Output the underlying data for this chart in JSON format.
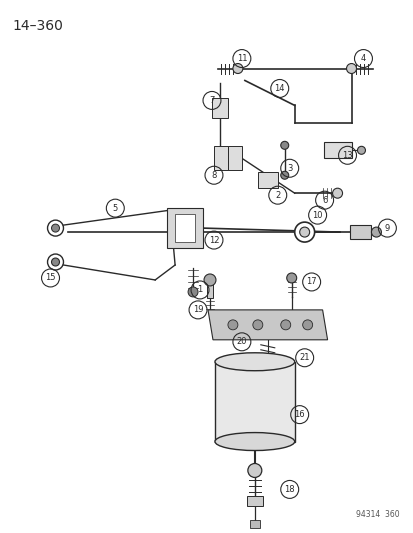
{
  "title_text": "14–360",
  "watermark": "94314  360",
  "bg_color": "#ffffff",
  "line_color": "#2a2a2a",
  "fig_width": 4.14,
  "fig_height": 5.33,
  "dpi": 100
}
